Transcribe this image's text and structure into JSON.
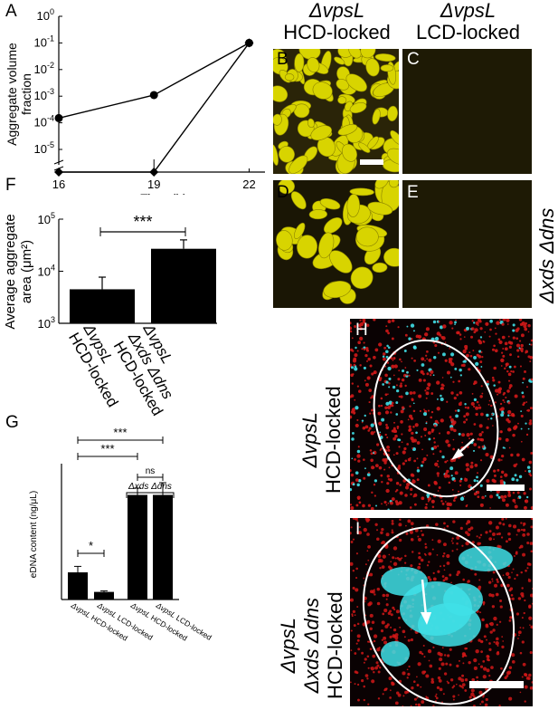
{
  "panel_letters": {
    "a": "A",
    "b": "B",
    "c": "C",
    "d": "D",
    "e": "E",
    "f": "F",
    "g": "G",
    "h": "H",
    "i": "I"
  },
  "headers": {
    "col1_strain": "ΔvpsL",
    "col1_state": "HCD-locked",
    "col2_strain": "ΔvpsL",
    "col2_state": "LCD-locked",
    "row2_side": "Δxds Δdns",
    "h_strain": "ΔvpsL",
    "h_state": "HCD-locked",
    "i_strain": "ΔvpsL",
    "i_strain2": "Δxds Δdns",
    "i_state": "HCD-locked"
  },
  "colors": {
    "micrograph_yellow": "#d8d400",
    "micrograph_dark": "#1e1a05",
    "cyan": "#40e0e8",
    "red": "#d01818"
  },
  "chart_data": [
    {
      "id": "A",
      "type": "line",
      "xlabel": "Time (h)",
      "ylabel": "Aggregate volume fraction",
      "x_ticks": [
        "16",
        "19",
        "22"
      ],
      "y_scale": "log",
      "y_ticks": [
        "10^0",
        "10^-1",
        "10^-2",
        "10^-3",
        "10^-4",
        "10^-5"
      ],
      "series": [
        {
          "marker": "circle",
          "x": [
            16,
            19,
            22
          ],
          "y": [
            0.00015,
            0.0011,
            0.1
          ]
        },
        {
          "marker": "diamond",
          "x": [
            16,
            19,
            22
          ],
          "y": [
            0,
            0,
            0.1
          ]
        }
      ]
    },
    {
      "id": "F",
      "type": "bar",
      "ylabel": "Average aggregate area (μm²)",
      "y_scale": "log",
      "ylim": [
        1000,
        100000
      ],
      "y_ticks": [
        "10^3",
        "10^4",
        "10^5"
      ],
      "categories": [
        "ΔvpsL HCD-locked",
        "ΔvpsL Δxds Δdns HCD-locked"
      ],
      "values": [
        4500,
        27000
      ],
      "errors": [
        3200,
        13000
      ],
      "significance": [
        {
          "pair": [
            0,
            1
          ],
          "label": "***"
        }
      ]
    },
    {
      "id": "G",
      "type": "bar",
      "ylabel": "eDNA content (ng/μL)",
      "ylim": [
        0,
        500
      ],
      "categories": [
        "ΔvpsL HCD-locked",
        "ΔvpsL LCD-locked",
        "ΔvpsL HCD-locked",
        "ΔvpsL LCD-locked"
      ],
      "group_label": "Δxds Δdns",
      "values": [
        100,
        28,
        385,
        385
      ],
      "errors": [
        22,
        4,
        25,
        45
      ],
      "significance": [
        {
          "pair": [
            0,
            1
          ],
          "label": "*"
        },
        {
          "pair": [
            0,
            2
          ],
          "label": "***"
        },
        {
          "pair": [
            0,
            3
          ],
          "label": "***"
        },
        {
          "pair": [
            2,
            3
          ],
          "label": "ns"
        }
      ]
    }
  ]
}
